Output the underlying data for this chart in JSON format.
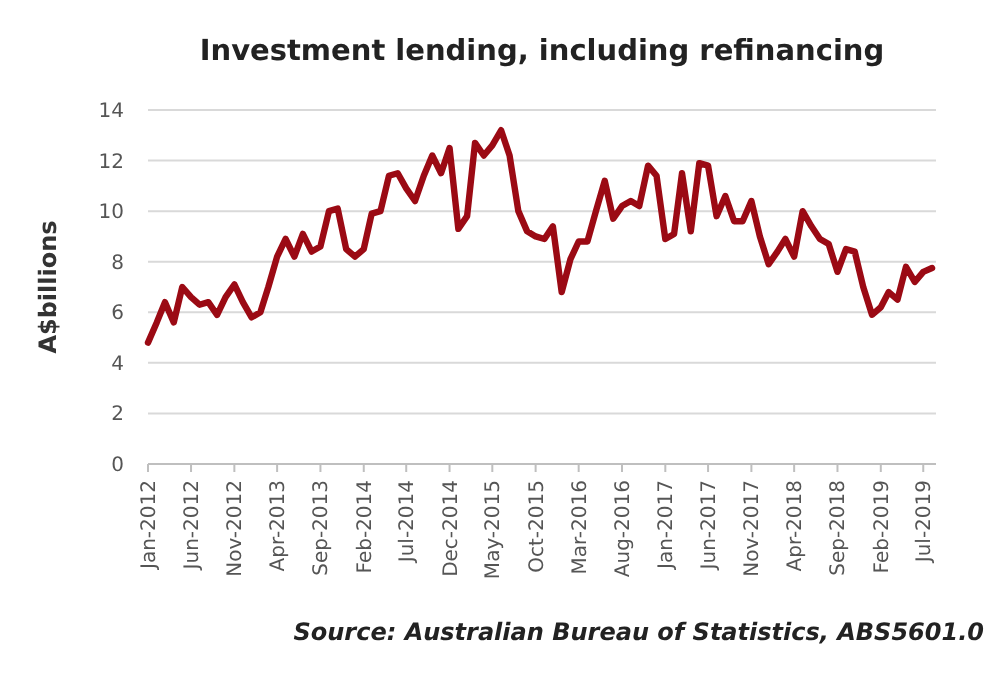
{
  "chart_data": {
    "type": "line",
    "title": "Investment lending, including refinancing",
    "ylabel": "A$billions",
    "x": [
      "2012-01",
      "2012-02",
      "2012-03",
      "2012-04",
      "2012-05",
      "2012-06",
      "2012-07",
      "2012-08",
      "2012-09",
      "2012-10",
      "2012-11",
      "2012-12",
      "2013-01",
      "2013-02",
      "2013-03",
      "2013-04",
      "2013-05",
      "2013-06",
      "2013-07",
      "2013-08",
      "2013-09",
      "2013-10",
      "2013-11",
      "2013-12",
      "2014-01",
      "2014-02",
      "2014-03",
      "2014-04",
      "2014-05",
      "2014-06",
      "2014-07",
      "2014-08",
      "2014-09",
      "2014-10",
      "2014-11",
      "2014-12",
      "2015-01",
      "2015-02",
      "2015-03",
      "2015-04",
      "2015-05",
      "2015-06",
      "2015-07",
      "2015-08",
      "2015-09",
      "2015-10",
      "2015-11",
      "2015-12",
      "2016-01",
      "2016-02",
      "2016-03",
      "2016-04",
      "2016-05",
      "2016-06",
      "2016-07",
      "2016-08",
      "2016-09",
      "2016-10",
      "2016-11",
      "2016-12",
      "2017-01",
      "2017-02",
      "2017-03",
      "2017-04",
      "2017-05",
      "2017-06",
      "2017-07",
      "2017-08",
      "2017-09",
      "2017-10",
      "2017-11",
      "2017-12",
      "2018-01",
      "2018-02",
      "2018-03",
      "2018-04",
      "2018-05",
      "2018-06",
      "2018-07",
      "2018-08",
      "2018-09",
      "2018-10",
      "2018-11",
      "2018-12",
      "2019-01",
      "2019-02",
      "2019-03",
      "2019-04",
      "2019-05",
      "2019-06",
      "2019-07",
      "2019-08"
    ],
    "series": [
      {
        "color": "#9b0a14",
        "values": [
          4.8,
          5.6,
          6.4,
          5.6,
          7.0,
          6.6,
          6.3,
          6.4,
          5.9,
          6.6,
          7.1,
          6.4,
          5.8,
          6.0,
          7.0,
          8.2,
          8.9,
          8.2,
          9.1,
          8.4,
          8.6,
          10.0,
          10.1,
          8.5,
          8.2,
          8.5,
          9.9,
          10.0,
          11.4,
          11.5,
          10.9,
          10.4,
          11.4,
          12.2,
          11.5,
          12.5,
          9.3,
          9.8,
          12.7,
          12.2,
          12.6,
          13.2,
          12.2,
          10.0,
          9.2,
          9.0,
          8.9,
          9.4,
          6.8,
          8.1,
          8.8,
          8.8,
          10.0,
          11.2,
          9.7,
          10.2,
          10.4,
          10.2,
          11.8,
          11.4,
          8.9,
          9.1,
          11.5,
          9.2,
          11.9,
          11.8,
          9.8,
          10.6,
          9.6,
          9.6,
          10.4,
          9.0,
          7.9,
          8.4,
          8.9,
          8.2,
          10.0,
          9.4,
          8.9,
          8.7,
          7.6,
          8.5,
          8.4,
          7.0,
          5.9,
          6.2,
          6.8,
          6.5,
          7.8,
          7.2,
          7.6,
          7.75
        ]
      }
    ],
    "xlim": [
      "2012-01",
      "2019-08-15"
    ],
    "xticks": [
      {
        "value": "2012-01",
        "label": "Jan-2012"
      },
      {
        "value": "2012-06",
        "label": "Jun-2012"
      },
      {
        "value": "2012-11",
        "label": "Nov-2012"
      },
      {
        "value": "2013-04",
        "label": "Apr-2013"
      },
      {
        "value": "2013-09",
        "label": "Sep-2013"
      },
      {
        "value": "2014-02",
        "label": "Feb-2014"
      },
      {
        "value": "2014-07",
        "label": "Jul-2014"
      },
      {
        "value": "2014-12",
        "label": "Dec-2014"
      },
      {
        "value": "2015-05",
        "label": "May-2015"
      },
      {
        "value": "2015-10",
        "label": "Oct-2015"
      },
      {
        "value": "2016-03",
        "label": "Mar-2016"
      },
      {
        "value": "2016-08",
        "label": "Aug-2016"
      },
      {
        "value": "2017-01",
        "label": "Jan-2017"
      },
      {
        "value": "2017-06",
        "label": "Jun-2017"
      },
      {
        "value": "2017-11",
        "label": "Nov-2017"
      },
      {
        "value": "2018-04",
        "label": "Apr-2018"
      },
      {
        "value": "2018-09",
        "label": "Sep-2018"
      },
      {
        "value": "2019-02",
        "label": "Feb-2019"
      },
      {
        "value": "2019-07",
        "label": "Jul-2019"
      }
    ],
    "ylim": [
      0,
      14
    ],
    "yticks": [
      0,
      2,
      4,
      6,
      8,
      10,
      12,
      14
    ],
    "grid": "y",
    "line_style": "solid",
    "marker": "none",
    "annotations": [
      "Source: Australian Bureau of Statistics, ABS5601.0"
    ]
  }
}
